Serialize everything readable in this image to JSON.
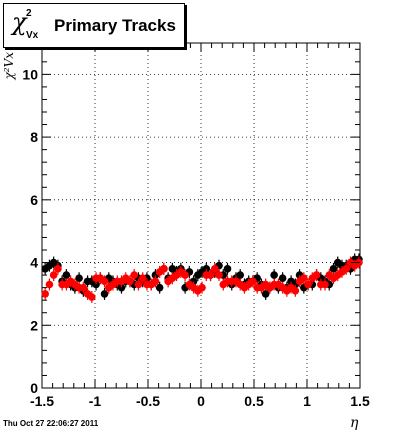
{
  "title": {
    "symbol": "χ",
    "superscript": "2",
    "subscript": "Vx",
    "text": "Primary Tracks"
  },
  "footer_text": "Thu Oct 27 22:06:27 2011",
  "chart_data": {
    "type": "scatter",
    "xlabel": "η",
    "ylabel": "χ²Vx",
    "xlim": [
      -1.5,
      1.5
    ],
    "ylim": [
      0,
      11
    ],
    "xticks": [
      {
        "value": -1.5,
        "label": "-1.5"
      },
      {
        "value": -1.0,
        "label": "-1"
      },
      {
        "value": -0.5,
        "label": "-0.5"
      },
      {
        "value": 0.0,
        "label": "0"
      },
      {
        "value": 0.5,
        "label": "0.5"
      },
      {
        "value": 1.0,
        "label": "1"
      },
      {
        "value": 1.5,
        "label": "1.5"
      }
    ],
    "yticks": [
      {
        "value": 0,
        "label": "0"
      },
      {
        "value": 2,
        "label": "2"
      },
      {
        "value": 4,
        "label": "4"
      },
      {
        "value": 6,
        "label": "6"
      },
      {
        "value": 8,
        "label": "8"
      },
      {
        "value": 10,
        "label": "10"
      }
    ],
    "grid": true,
    "series": [
      {
        "color": "#000000",
        "x": [
          -1.47,
          -1.43,
          -1.39,
          -1.35,
          -1.31,
          -1.27,
          -1.23,
          -1.19,
          -1.15,
          -1.11,
          -1.07,
          -1.03,
          -0.99,
          -0.95,
          -0.91,
          -0.87,
          -0.83,
          -0.79,
          -0.75,
          -0.71,
          -0.67,
          -0.63,
          -0.59,
          -0.55,
          -0.51,
          -0.47,
          -0.43,
          -0.39,
          -0.35,
          -0.31,
          -0.27,
          -0.23,
          -0.19,
          -0.15,
          -0.11,
          -0.07,
          -0.03,
          0.01,
          0.05,
          0.09,
          0.13,
          0.17,
          0.21,
          0.25,
          0.29,
          0.33,
          0.37,
          0.41,
          0.45,
          0.49,
          0.53,
          0.57,
          0.61,
          0.65,
          0.69,
          0.73,
          0.77,
          0.81,
          0.85,
          0.89,
          0.93,
          0.97,
          1.01,
          1.05,
          1.09,
          1.13,
          1.17,
          1.21,
          1.25,
          1.29,
          1.33,
          1.37,
          1.41,
          1.45,
          1.49
        ],
        "y": [
          3.8,
          3.9,
          4.0,
          3.9,
          3.4,
          3.6,
          3.3,
          3.2,
          3.5,
          3.1,
          3.4,
          3.4,
          3.3,
          3.5,
          3.0,
          3.5,
          3.4,
          3.3,
          3.2,
          3.4,
          3.4,
          3.3,
          3.5,
          3.4,
          3.5,
          3.3,
          3.6,
          3.2,
          3.8,
          3.5,
          3.8,
          3.7,
          3.8,
          3.2,
          3.7,
          3.4,
          3.6,
          3.7,
          3.8,
          3.6,
          3.7,
          3.9,
          3.6,
          3.8,
          3.3,
          3.5,
          3.6,
          3.3,
          3.4,
          3.4,
          3.5,
          3.3,
          3.0,
          3.2,
          3.6,
          3.2,
          3.5,
          3.2,
          3.4,
          3.3,
          3.6,
          3.2,
          3.3,
          3.3,
          3.6,
          3.5,
          3.4,
          3.3,
          3.8,
          4.0,
          3.9,
          3.9,
          3.8,
          4.1,
          4.1
        ]
      },
      {
        "color": "#ff0000",
        "x": [
          -1.47,
          -1.43,
          -1.39,
          -1.35,
          -1.31,
          -1.27,
          -1.23,
          -1.19,
          -1.15,
          -1.11,
          -1.07,
          -1.03,
          -0.99,
          -0.95,
          -0.91,
          -0.87,
          -0.83,
          -0.79,
          -0.75,
          -0.71,
          -0.67,
          -0.63,
          -0.59,
          -0.55,
          -0.51,
          -0.47,
          -0.43,
          -0.39,
          -0.35,
          -0.31,
          -0.27,
          -0.23,
          -0.19,
          -0.15,
          -0.11,
          -0.07,
          -0.03,
          0.01,
          0.05,
          0.09,
          0.13,
          0.17,
          0.21,
          0.25,
          0.29,
          0.33,
          0.37,
          0.41,
          0.45,
          0.49,
          0.53,
          0.57,
          0.61,
          0.65,
          0.69,
          0.73,
          0.77,
          0.81,
          0.85,
          0.89,
          0.93,
          0.97,
          1.01,
          1.05,
          1.09,
          1.13,
          1.17,
          1.21,
          1.25,
          1.29,
          1.33,
          1.37,
          1.41,
          1.45,
          1.49
        ],
        "y": [
          3.0,
          3.3,
          3.6,
          3.8,
          3.3,
          3.3,
          3.4,
          3.3,
          3.2,
          3.2,
          3.0,
          2.9,
          3.5,
          3.5,
          3.4,
          3.2,
          3.3,
          3.4,
          3.4,
          3.5,
          3.4,
          3.6,
          3.3,
          3.5,
          3.3,
          3.3,
          3.4,
          3.7,
          3.8,
          3.4,
          3.5,
          3.6,
          3.7,
          3.6,
          3.3,
          3.2,
          3.1,
          3.2,
          3.6,
          3.6,
          3.8,
          3.6,
          3.3,
          3.4,
          3.4,
          3.4,
          3.3,
          3.2,
          3.3,
          3.4,
          3.2,
          3.2,
          3.3,
          3.2,
          3.3,
          3.3,
          3.2,
          3.1,
          3.2,
          3.1,
          3.4,
          3.5,
          3.3,
          3.5,
          3.6,
          3.3,
          3.3,
          3.6,
          3.5,
          3.6,
          3.7,
          3.8,
          4.0,
          3.9,
          4.0
        ]
      }
    ]
  }
}
